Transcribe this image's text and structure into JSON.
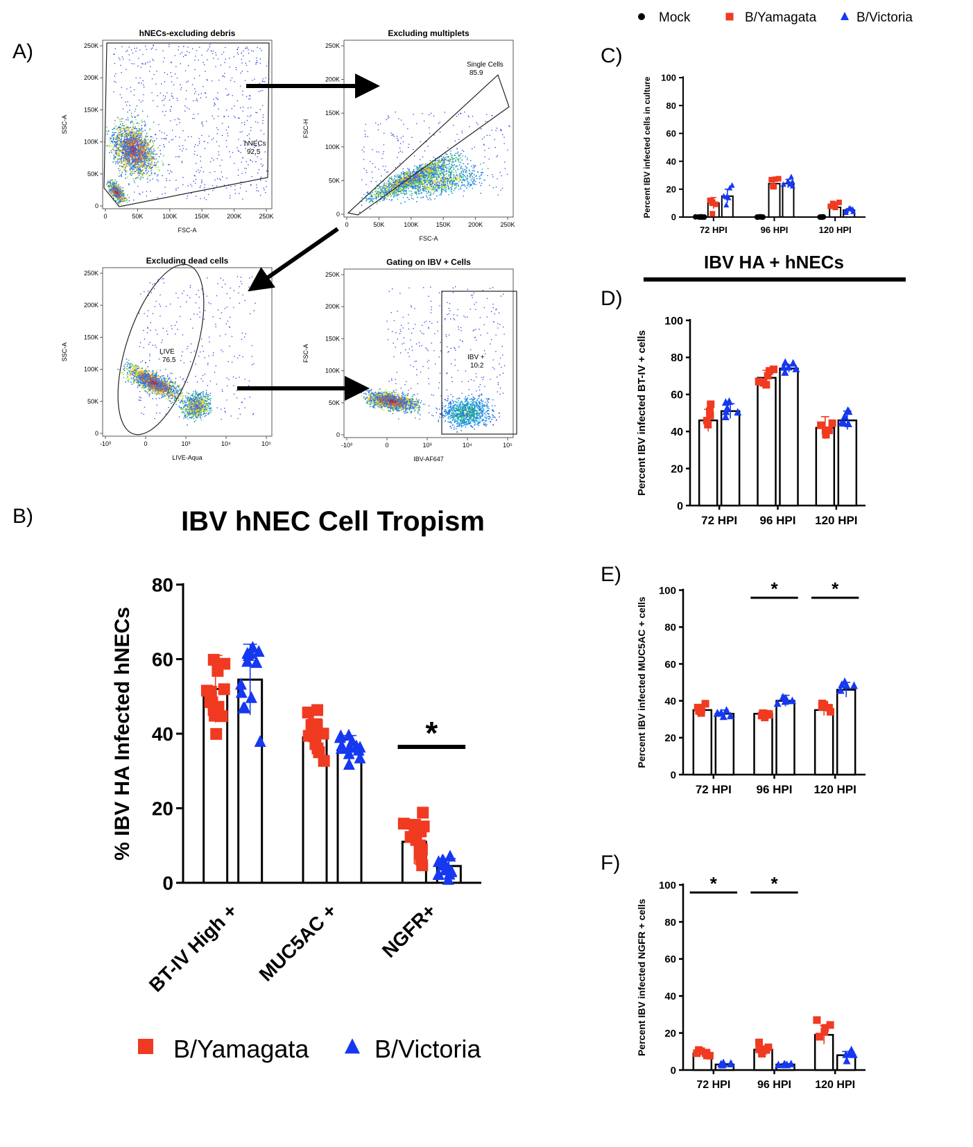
{
  "figure": {
    "panel_labels": {
      "A": "A)",
      "B": "B)",
      "C": "C)",
      "D": "D)",
      "E": "E)",
      "F": "F)"
    },
    "colors": {
      "yamagata": "#f03a21",
      "victoria": "#1538f0",
      "mock": "#000000"
    },
    "top_legend": {
      "mock": "Mock",
      "yamagata": "B/Yamagata",
      "victoria": "B/Victoria"
    },
    "flow_plots": [
      {
        "title": "hNECs-excluding debris",
        "xlabel": "FSC-A",
        "ylabel": "SSC-A",
        "xticks": [
          "0",
          "50K",
          "100K",
          "150K",
          "200K",
          "250K"
        ],
        "yticks": [
          "0",
          "50K",
          "100K",
          "150K",
          "200K",
          "250K"
        ],
        "gate_name": "hNECs",
        "gate_value": "92.5"
      },
      {
        "title": "Excluding multiplets",
        "xlabel": "FSC-A",
        "ylabel": "FSC-H",
        "xticks": [
          "0",
          "50K",
          "100K",
          "150K",
          "200K",
          "250K"
        ],
        "yticks": [
          "0",
          "50K",
          "100K",
          "150K",
          "200K",
          "250K"
        ],
        "gate_name": "Single Cells",
        "gate_value": "85.9"
      },
      {
        "title": "Excluding dead cells",
        "xlabel": "LIVE-Aqua",
        "ylabel": "SSC-A",
        "xticks": [
          "-10³",
          "0",
          "10³",
          "10⁴",
          "10⁵"
        ],
        "yticks": [
          "0",
          "50K",
          "100K",
          "150K",
          "200K",
          "250K"
        ],
        "gate_name": "LIVE",
        "gate_value": "76.5"
      },
      {
        "title": "Gating on IBV + Cells",
        "xlabel": "IBV-AF647",
        "ylabel": "FSC-A",
        "xticks": [
          "-10³",
          "0",
          "10³",
          "10⁴",
          "10⁵"
        ],
        "yticks": [
          "0",
          "50K",
          "100K",
          "150K",
          "200K",
          "250K"
        ],
        "gate_name": "IBV +",
        "gate_value": "10.2"
      }
    ],
    "section_header": "IBV HA + hNECs",
    "bottom_legend": {
      "yamagata": "B/Yamagata",
      "victoria": "B/Victoria"
    }
  },
  "chart_data": [
    {
      "panel": "B",
      "type": "bar",
      "title": "IBV hNEC Cell Tropism",
      "ylabel": "% IBV HA Infected hNECs",
      "ylim": [
        0,
        80
      ],
      "yticks": [
        "0",
        "20",
        "40",
        "60",
        "80"
      ],
      "categories": [
        "BT-IV High +",
        "MUC5AC +",
        "NGFR+"
      ],
      "series": [
        {
          "name": "B/Yamagata",
          "values": [
            52,
            39,
            11
          ],
          "errors": [
            9,
            5,
            6
          ]
        },
        {
          "name": "B/Victoria",
          "values": [
            54.5,
            35.5,
            4.5
          ],
          "errors": [
            9.5,
            4,
            2
          ]
        }
      ],
      "significance": [
        {
          "category": "NGFR+",
          "label": "*"
        }
      ]
    },
    {
      "panel": "C",
      "type": "bar",
      "ylabel": "Percent IBV infected cells in culture",
      "ylim": [
        0,
        100
      ],
      "yticks": [
        "0",
        "20",
        "40",
        "60",
        "80",
        "100"
      ],
      "categories": [
        "72 HPI",
        "96 HPI",
        "120 HPI"
      ],
      "series": [
        {
          "name": "Mock",
          "values": [
            0,
            0,
            0
          ],
          "errors": [
            0,
            0,
            0
          ]
        },
        {
          "name": "B/Yamagata",
          "values": [
            10,
            24,
            7
          ],
          "errors": [
            4,
            3,
            2
          ]
        },
        {
          "name": "B/Victoria",
          "values": [
            15,
            24,
            5
          ],
          "errors": [
            5,
            3,
            1
          ]
        }
      ]
    },
    {
      "panel": "D",
      "type": "bar",
      "ylabel": "Percent IBV infected BT-IV + cells",
      "ylim": [
        0,
        100
      ],
      "yticks": [
        "0",
        "20",
        "40",
        "60",
        "80",
        "100"
      ],
      "categories": [
        "72 HPI",
        "96 HPI",
        "120 HPI"
      ],
      "series": [
        {
          "name": "B/Yamagata",
          "values": [
            46,
            69,
            42
          ],
          "errors": [
            6,
            4,
            6
          ]
        },
        {
          "name": "B/Victoria",
          "values": [
            51,
            74,
            46
          ],
          "errors": [
            4,
            2,
            5
          ]
        }
      ]
    },
    {
      "panel": "E",
      "type": "bar",
      "ylabel": "Percent IBV infected MUC5AC + cells",
      "ylim": [
        0,
        100
      ],
      "yticks": [
        "0",
        "20",
        "40",
        "60",
        "80",
        "100"
      ],
      "categories": [
        "72 HPI",
        "96 HPI",
        "120 HPI"
      ],
      "series": [
        {
          "name": "B/Yamagata",
          "values": [
            35,
            33,
            35
          ],
          "errors": [
            3,
            2,
            3
          ]
        },
        {
          "name": "B/Victoria",
          "values": [
            33,
            40,
            46
          ],
          "errors": [
            2,
            3,
            4
          ]
        }
      ],
      "significance": [
        {
          "category": "96 HPI",
          "label": "*"
        },
        {
          "category": "120 HPI",
          "label": "*"
        }
      ]
    },
    {
      "panel": "F",
      "type": "bar",
      "ylabel": "Percent IBV infected NGFR + cells",
      "ylim": [
        0,
        100
      ],
      "yticks": [
        "0",
        "20",
        "40",
        "60",
        "80",
        "100"
      ],
      "categories": [
        "72 HPI",
        "96 HPI",
        "120 HPI"
      ],
      "series": [
        {
          "name": "B/Yamagata",
          "values": [
            9,
            11,
            19
          ],
          "errors": [
            2,
            2,
            5
          ]
        },
        {
          "name": "B/Victoria",
          "values": [
            3,
            3,
            8
          ],
          "errors": [
            0.5,
            0.5,
            2
          ]
        }
      ],
      "significance": [
        {
          "category": "72 HPI",
          "label": "*"
        },
        {
          "category": "96 HPI",
          "label": "*"
        }
      ]
    }
  ]
}
